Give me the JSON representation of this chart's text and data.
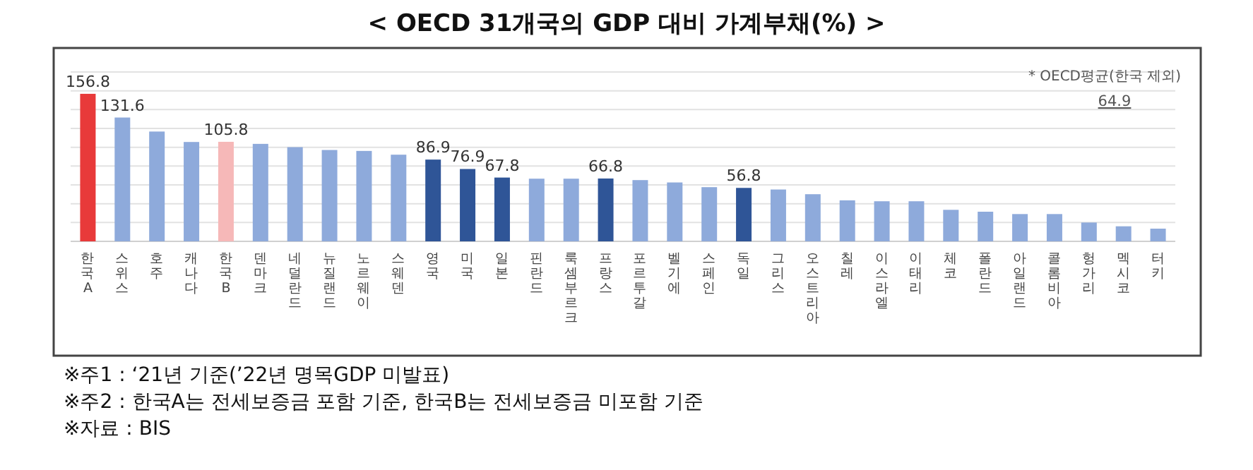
{
  "chart_data": {
    "type": "bar",
    "title": "< OECD 31개국의 GDP 대비 가계부채(%) >",
    "categories": [
      "한국A",
      "스위스",
      "호주",
      "캐나다",
      "한국B",
      "덴마크",
      "네덜란드",
      "뉴질랜드",
      "노르웨이",
      "스웨덴",
      "영국",
      "미국",
      "일본",
      "핀란드",
      "룩셈부르크",
      "프랑스",
      "포르투갈",
      "벨기에",
      "스페인",
      "독일",
      "그리스",
      "오스트리아",
      "칠레",
      "이스라엘",
      "이태리",
      "체코",
      "폴란드",
      "아일랜드",
      "콜롬비아",
      "헝가리",
      "멕시코",
      "터키"
    ],
    "values": [
      156.8,
      131.6,
      116.7,
      105.6,
      105.8,
      103.6,
      100.1,
      97.1,
      96.1,
      92.1,
      86.9,
      76.9,
      67.8,
      66.6,
      66.6,
      66.8,
      65.1,
      62.6,
      57.6,
      56.8,
      55.1,
      50.1,
      43.6,
      42.6,
      42.6,
      33.5,
      31.5,
      29.0,
      29.0,
      20.0,
      16.0,
      13.5
    ],
    "value_labels": [
      "156.8",
      "131.6",
      null,
      null,
      "105.8",
      null,
      null,
      null,
      null,
      null,
      "86.9",
      "76.9",
      "67.8",
      null,
      null,
      "66.8",
      null,
      null,
      null,
      "56.8",
      null,
      null,
      null,
      null,
      null,
      null,
      null,
      null,
      null,
      null,
      null,
      null
    ],
    "colors": [
      "#e83a3a",
      "#8eaadb",
      "#8eaadb",
      "#8eaadb",
      "#f6b8b8",
      "#8eaadb",
      "#8eaadb",
      "#8eaadb",
      "#8eaadb",
      "#8eaadb",
      "#2f5597",
      "#2f5597",
      "#2f5597",
      "#8eaadb",
      "#8eaadb",
      "#2f5597",
      "#8eaadb",
      "#8eaadb",
      "#8eaadb",
      "#2f5597",
      "#8eaadb",
      "#8eaadb",
      "#8eaadb",
      "#8eaadb",
      "#8eaadb",
      "#8eaadb",
      "#8eaadb",
      "#8eaadb",
      "#8eaadb",
      "#8eaadb",
      "#8eaadb",
      "#8eaadb"
    ],
    "ylim": [
      0,
      180
    ],
    "yticks": [
      {
        "value": 20,
        "label": null
      },
      {
        "value": 40,
        "label": null
      },
      {
        "value": 60,
        "label": null
      },
      {
        "value": 80,
        "label": null
      },
      {
        "value": 100,
        "label": null
      },
      {
        "value": 120,
        "label": null
      },
      {
        "value": 140,
        "label": null
      },
      {
        "value": 160,
        "label": null
      },
      {
        "value": 180,
        "label": null
      }
    ],
    "grid": "y",
    "tick_labels": "x",
    "annotations": [
      "* OECD평균(한국 제외)",
      "64.9",
      "※주1 : ‘21년 기준(’22년 명목GDP 미발표)",
      "※주2 : 한국A는 전세보증금 포함 기준, 한국B는 전세보증금 미포함 기준",
      "※자료 : BIS"
    ]
  }
}
